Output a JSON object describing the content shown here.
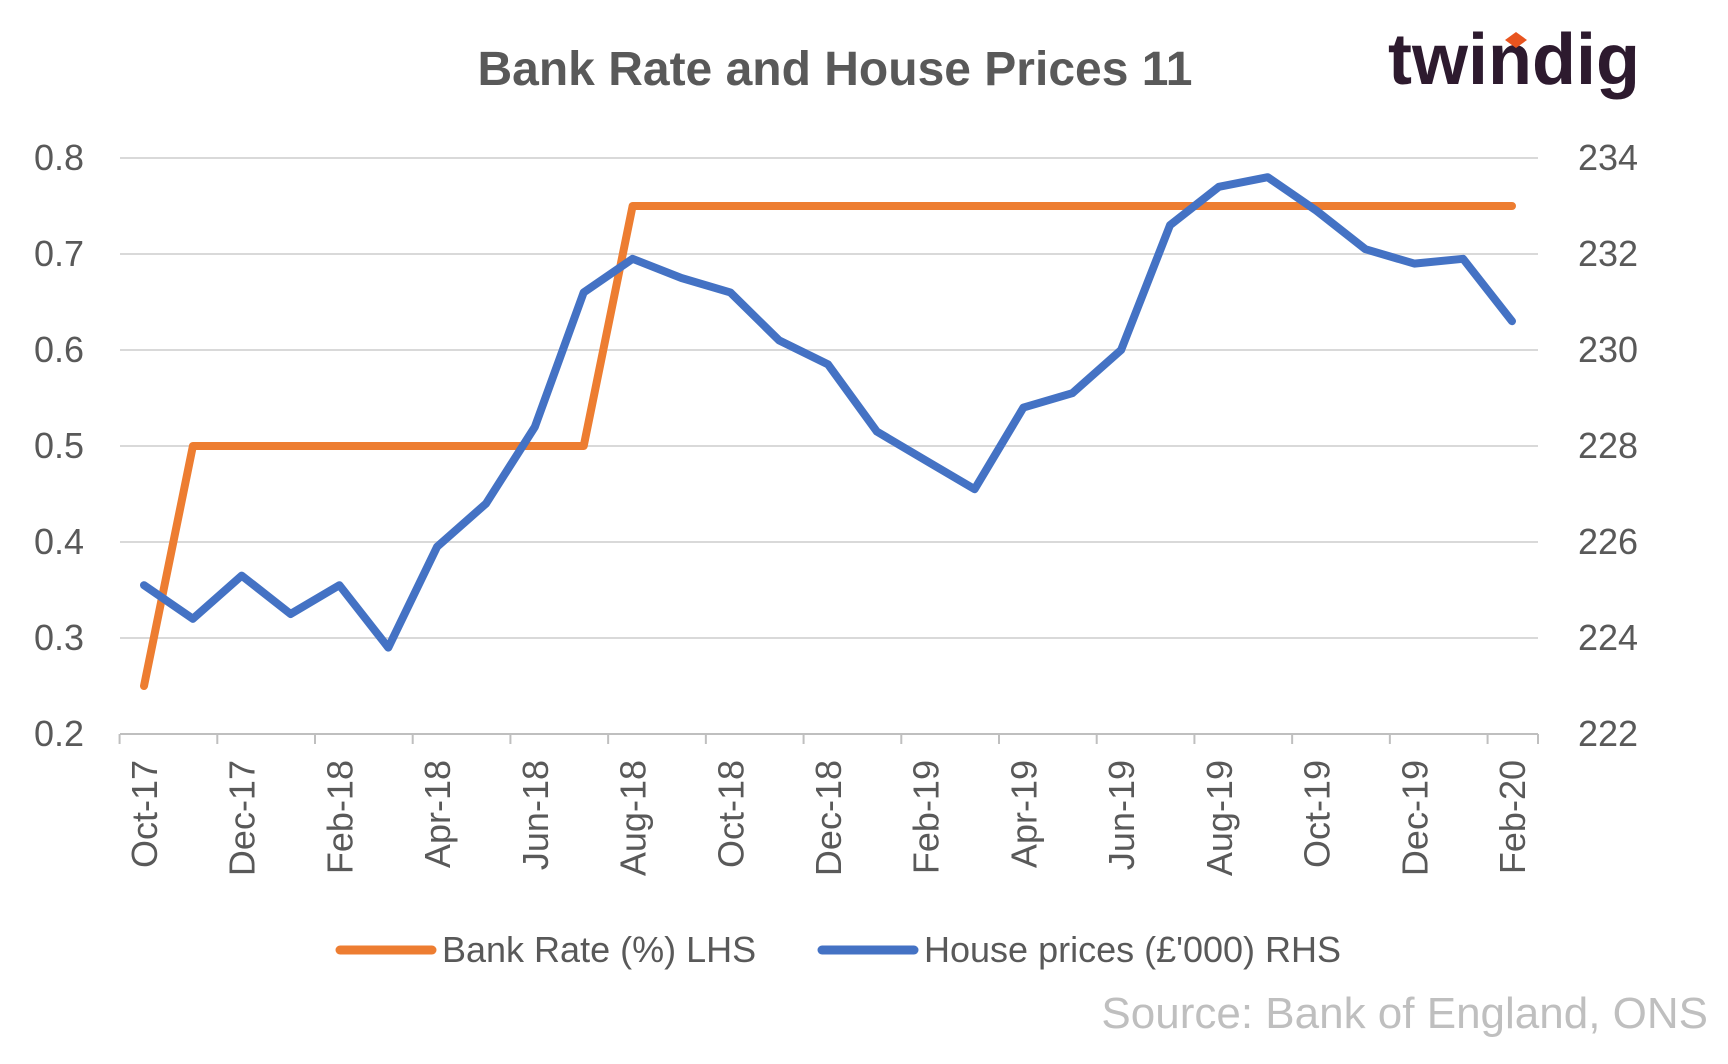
{
  "brand": {
    "logo_text": "twindig",
    "dot_color": "#e8541f"
  },
  "source": "Source: Bank of England, ONS",
  "chart_data": {
    "type": "line",
    "title": "Bank Rate and House Prices 11",
    "x": [
      "Oct-17",
      "Nov-17",
      "Dec-17",
      "Jan-18",
      "Feb-18",
      "Mar-18",
      "Apr-18",
      "May-18",
      "Jun-18",
      "Jul-18",
      "Aug-18",
      "Sep-18",
      "Oct-18",
      "Nov-18",
      "Dec-18",
      "Jan-19",
      "Feb-19",
      "Mar-19",
      "Apr-19",
      "May-19",
      "Jun-19",
      "Jul-19",
      "Aug-19",
      "Sep-19",
      "Oct-19",
      "Nov-19",
      "Dec-19",
      "Jan-20",
      "Feb-20"
    ],
    "x_tick_labels": [
      "Oct-17",
      "Dec-17",
      "Feb-18",
      "Apr-18",
      "Jun-18",
      "Aug-18",
      "Oct-18",
      "Dec-18",
      "Feb-19",
      "Apr-19",
      "Jun-19",
      "Aug-19",
      "Oct-19",
      "Dec-19",
      "Feb-20"
    ],
    "y_left": {
      "range": [
        0.2,
        0.8
      ],
      "ticks": [
        "0.8",
        "0.7",
        "0.6",
        "0.5",
        "0.4",
        "0.3",
        "0.2"
      ]
    },
    "y_right": {
      "range": [
        222,
        234
      ],
      "ticks": [
        "234",
        "232",
        "230",
        "228",
        "226",
        "224",
        "222"
      ]
    },
    "grid": true,
    "legend_position": "bottom",
    "series": [
      {
        "name": "Bank Rate (%) LHS",
        "axis": "left",
        "color": "#ed7d31",
        "values": [
          0.25,
          0.5,
          0.5,
          0.5,
          0.5,
          0.5,
          0.5,
          0.5,
          0.5,
          0.5,
          0.75,
          0.75,
          0.75,
          0.75,
          0.75,
          0.75,
          0.75,
          0.75,
          0.75,
          0.75,
          0.75,
          0.75,
          0.75,
          0.75,
          0.75,
          0.75,
          0.75,
          0.75,
          0.75
        ]
      },
      {
        "name": "House prices (£'000) RHS",
        "axis": "right",
        "color": "#4472c4",
        "values": [
          225.1,
          224.4,
          225.3,
          224.5,
          225.1,
          223.8,
          225.9,
          226.8,
          228.4,
          231.2,
          231.9,
          231.5,
          231.2,
          230.2,
          229.7,
          228.3,
          227.7,
          227.1,
          228.8,
          229.1,
          230.0,
          232.6,
          233.4,
          233.6,
          232.9,
          232.1,
          231.8,
          231.9,
          230.6
        ]
      }
    ]
  }
}
